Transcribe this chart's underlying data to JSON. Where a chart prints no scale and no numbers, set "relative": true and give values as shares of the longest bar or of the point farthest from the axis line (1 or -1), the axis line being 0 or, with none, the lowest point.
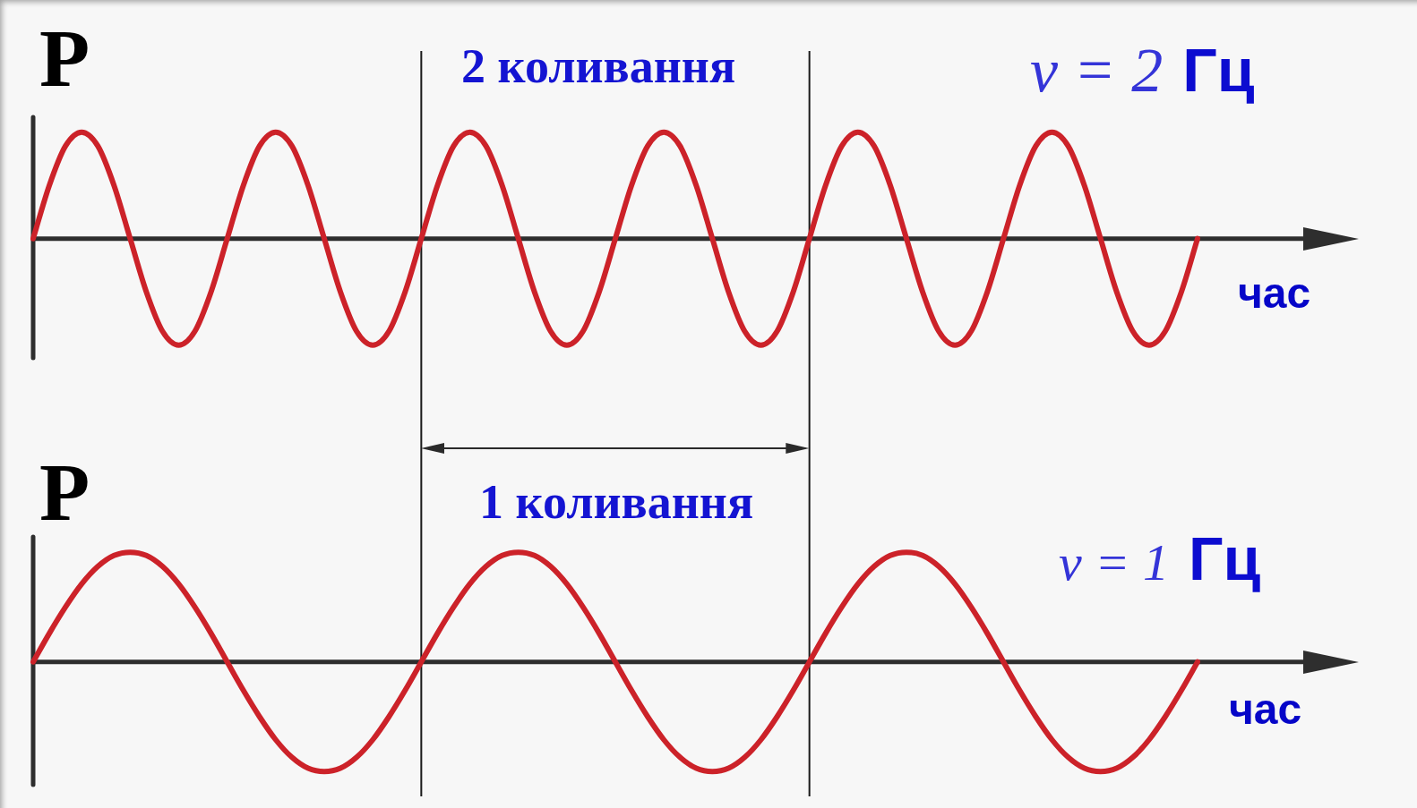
{
  "chart_data": [
    {
      "type": "line",
      "title": "ν = 2 Гц",
      "ylabel": "P",
      "xlabel": "час",
      "annotations": [
        "2 коливання"
      ],
      "relative": true,
      "tick_labels": false,
      "categories": [
        null,
        null,
        null,
        null,
        null,
        null,
        null,
        null,
        null,
        null,
        null,
        null,
        null,
        null,
        null,
        null,
        null,
        null,
        null,
        null,
        null,
        null,
        null,
        null,
        null,
        null,
        null,
        null,
        null,
        null,
        null,
        null,
        null,
        null,
        null,
        null,
        null,
        null,
        null,
        null,
        null,
        null,
        null,
        null,
        null,
        null,
        null,
        null,
        null,
        null,
        null,
        null,
        null,
        null,
        null,
        null,
        null,
        null,
        null,
        null,
        null,
        null,
        null,
        null,
        null,
        null,
        null,
        null,
        null,
        null,
        null,
        null,
        null
      ],
      "color": "#cc2229",
      "values": [
        0,
        0.5,
        0.87,
        1,
        0.87,
        0.5,
        0,
        -0.5,
        -0.87,
        -1,
        -0.87,
        -0.5,
        0,
        0.5,
        0.87,
        1,
        0.87,
        0.5,
        0,
        -0.5,
        -0.87,
        -1,
        -0.87,
        -0.5,
        0,
        0.5,
        0.87,
        1,
        0.87,
        0.5,
        0,
        -0.5,
        -0.87,
        -1,
        -0.87,
        -0.5,
        0,
        0.5,
        0.87,
        1,
        0.87,
        0.5,
        0,
        -0.5,
        -0.87,
        -1,
        -0.87,
        -0.5,
        0,
        0.5,
        0.87,
        1,
        0.87,
        0.5,
        0,
        -0.5,
        -0.87,
        -1,
        -0.87,
        -0.5,
        0,
        0.5,
        0.87,
        1,
        0.87,
        0.5,
        0,
        -0.5,
        -0.87,
        -1,
        -0.87,
        -0.5,
        0
      ]
    },
    {
      "type": "line",
      "title": "ν = 1 Гц",
      "ylabel": "P",
      "xlabel": "час",
      "annotations": [
        "1 коливання"
      ],
      "relative": true,
      "tick_labels": false,
      "categories": [
        null,
        null,
        null,
        null,
        null,
        null,
        null,
        null,
        null,
        null,
        null,
        null,
        null,
        null,
        null,
        null,
        null,
        null,
        null,
        null,
        null,
        null,
        null,
        null,
        null,
        null,
        null,
        null,
        null,
        null,
        null,
        null,
        null,
        null,
        null,
        null,
        null,
        null,
        null,
        null,
        null,
        null,
        null,
        null,
        null,
        null,
        null,
        null,
        null,
        null,
        null,
        null,
        null,
        null,
        null,
        null,
        null,
        null,
        null,
        null,
        null,
        null,
        null,
        null,
        null,
        null,
        null,
        null,
        null,
        null,
        null,
        null,
        null
      ],
      "color": "#cc2229",
      "values": [
        0,
        0.26,
        0.5,
        0.71,
        0.87,
        0.97,
        1,
        0.97,
        0.87,
        0.71,
        0.5,
        0.26,
        0,
        -0.26,
        -0.5,
        -0.71,
        -0.87,
        -0.97,
        -1,
        -0.97,
        -0.87,
        -0.71,
        -0.5,
        -0.26,
        0,
        0.26,
        0.5,
        0.71,
        0.87,
        0.97,
        1,
        0.97,
        0.87,
        0.71,
        0.5,
        0.26,
        0,
        -0.26,
        -0.5,
        -0.71,
        -0.87,
        -0.97,
        -1,
        -0.97,
        -0.87,
        -0.71,
        -0.5,
        -0.26,
        0,
        0.26,
        0.5,
        0.71,
        0.87,
        0.97,
        1,
        0.97,
        0.87,
        0.71,
        0.5,
        0.26,
        0,
        -0.26,
        -0.5,
        -0.71,
        -0.87,
        -0.97,
        -1,
        -0.97,
        -0.87,
        -0.71,
        -0.5,
        -0.26,
        0
      ]
    }
  ]
}
